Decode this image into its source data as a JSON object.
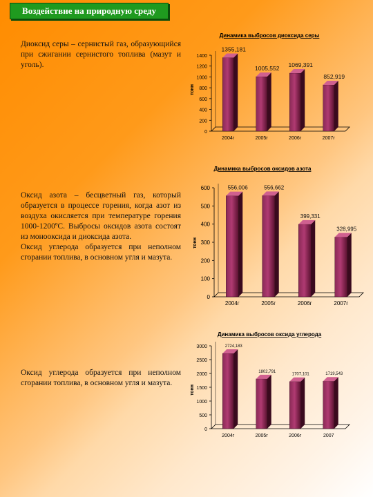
{
  "page": {
    "title": "Воздействие на природную среду",
    "text1": "Диоксид серы – сернистый газ, образующийся при сжигании сернистого топлива (мазут и уголь).",
    "text2a": "Оксид азота – бесцветный газ, который образуется в процессе горения, когда азот из воздуха окисляется при температуре горения 1000-1200ºС. Выбросы оксидов азота состоят из монооксида и диоксида азота.",
    "text2b": "Оксид углерода образуется при неполном сгорании топлива, в основном угля и мазута.",
    "text3": "Оксид углерода образуется при неполном сгорании топлива, в основном угля и мазута."
  },
  "colors": {
    "bar_front": "#b03a72",
    "bar_side": "#3a0a1e",
    "bar_top": "#d06090",
    "title_bg": "#1f9a1f"
  },
  "chart_data": [
    {
      "type": "bar",
      "title": "Динамика выбросов диоксида серы",
      "ylabel": "тонн",
      "categories": [
        "2004г",
        "2005г",
        "2006г",
        "2007г"
      ],
      "values": [
        1355.181,
        1005.552,
        1069.391,
        852.919
      ],
      "labels": [
        "1355,181",
        "1005,552",
        "1069,391",
        "852,919"
      ],
      "yticks": [
        "0",
        "200",
        "400",
        "600",
        "800",
        "1000",
        "1200",
        "1400"
      ],
      "ylim": [
        0,
        1400
      ]
    },
    {
      "type": "bar",
      "title": "Динамика выбросов оксидов азота",
      "ylabel": "тонн",
      "categories": [
        "2004г",
        "2005г",
        "2006г",
        "2007г"
      ],
      "values": [
        556.006,
        556.662,
        399.331,
        328.995
      ],
      "labels": [
        "556,006",
        "556,662",
        "399,331",
        "328,995"
      ],
      "yticks": [
        "0",
        "100",
        "200",
        "300",
        "400",
        "500",
        "600"
      ],
      "ylim": [
        0,
        600
      ]
    },
    {
      "type": "bar",
      "title": "Динамика выбросов оксида углерода",
      "ylabel": "тонн",
      "categories": [
        "2004г",
        "2005г",
        "2006г",
        "2007"
      ],
      "values": [
        2724.183,
        1802.791,
        1707.101,
        1719.543
      ],
      "labels": [
        "2724,183",
        "1802,791",
        "1707,101",
        "1719,543"
      ],
      "yticks": [
        "0",
        "500",
        "1000",
        "1500",
        "2000",
        "2500",
        "3000"
      ],
      "ylim": [
        0,
        3000
      ]
    }
  ]
}
